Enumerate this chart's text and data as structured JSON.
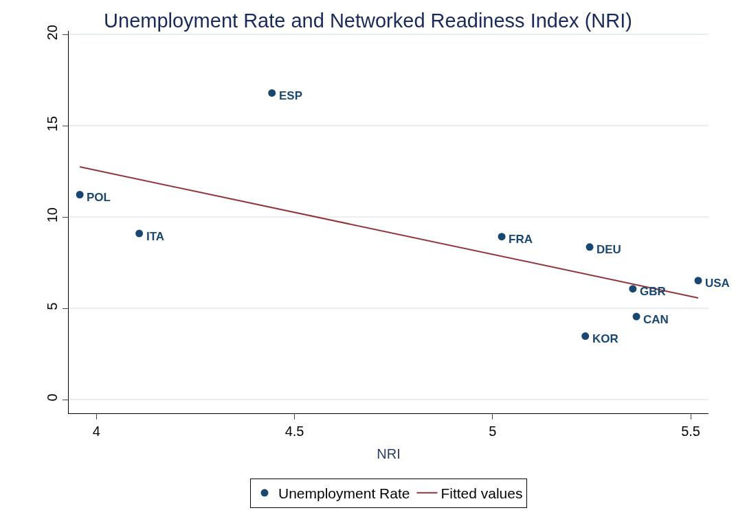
{
  "chart_data": {
    "type": "scatter",
    "title": "Unemployment Rate and Networked Readiness Index (NRI)",
    "xlabel": "NRI",
    "xlim": [
      3.93,
      5.545
    ],
    "xticks": [
      4,
      4.5,
      5,
      5.5
    ],
    "ylim": [
      -0.75,
      20.2
    ],
    "yticks": [
      0,
      5,
      10,
      15,
      20
    ],
    "grid": "y",
    "legend": "bottom",
    "series": [
      {
        "name": "Unemployment Rate",
        "marker": "circle",
        "color": "#1a476f",
        "x": [
          4.443,
          3.958,
          4.108,
          5.023,
          5.245,
          5.519,
          5.354,
          5.363,
          5.234
        ],
        "values": [
          16.8,
          11.23,
          9.1,
          8.93,
          8.36,
          6.52,
          6.07,
          4.55,
          3.48
        ]
      },
      {
        "name": "Fitted values",
        "type": "line",
        "marker": "none",
        "color": "#90353b",
        "x": [
          3.958,
          5.519
        ],
        "values": [
          12.75,
          5.57
        ]
      }
    ],
    "annotations": [
      {
        "text": "ESP",
        "x": 4.443,
        "y": 16.8
      },
      {
        "text": "POL",
        "x": 3.958,
        "y": 11.23
      },
      {
        "text": "ITA",
        "x": 4.108,
        "y": 9.1
      },
      {
        "text": "FRA",
        "x": 5.023,
        "y": 8.93
      },
      {
        "text": "DEU",
        "x": 5.245,
        "y": 8.36
      },
      {
        "text": "USA",
        "x": 5.519,
        "y": 6.52
      },
      {
        "text": "GBR",
        "x": 5.354,
        "y": 6.07
      },
      {
        "text": "CAN",
        "x": 5.363,
        "y": 4.55
      },
      {
        "text": "KOR",
        "x": 5.234,
        "y": 3.48
      }
    ]
  }
}
